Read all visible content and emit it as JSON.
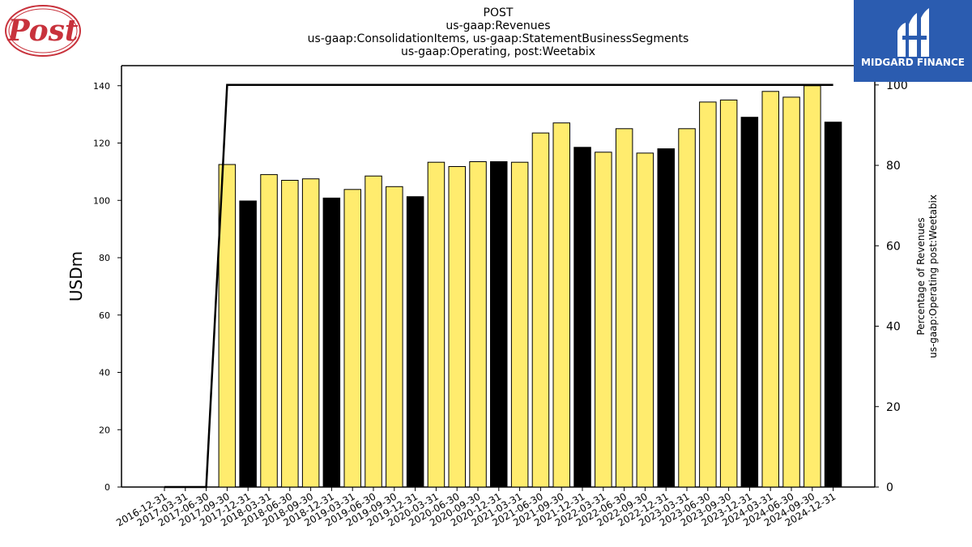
{
  "logos": {
    "company_logo_text": "Post",
    "brand_name": "MIDGARD FINANCE",
    "brand_color": "#2b5cb0",
    "company_color": "#c8323c"
  },
  "chart_data": {
    "type": "bar",
    "title_lines": [
      "POST",
      "us-gaap:Revenues",
      "us-gaap:ConsolidationItems, us-gaap:StatementBusinessSegments",
      "us-gaap:Operating, post:Weetabix"
    ],
    "ylabel": "USDm",
    "y2label_lines": [
      "Percentage of Revenues",
      "us-gaap:Operating post:Weetabix"
    ],
    "ylim": [
      0,
      147
    ],
    "yticks": [
      0,
      20,
      40,
      60,
      80,
      100,
      120,
      140
    ],
    "y2lim": [
      0,
      104.8
    ],
    "y2ticks": [
      0,
      20,
      40,
      60,
      80,
      100
    ],
    "categories": [
      "2016-12-31",
      "2017-03-31",
      "2017-06-30",
      "2017-09-30",
      "2017-12-31",
      "2018-03-31",
      "2018-06-30",
      "2018-09-30",
      "2018-12-31",
      "2019-03-31",
      "2019-06-30",
      "2019-09-30",
      "2019-12-31",
      "2020-03-31",
      "2020-06-30",
      "2020-09-30",
      "2020-12-31",
      "2021-03-31",
      "2021-06-30",
      "2021-09-30",
      "2021-12-31",
      "2022-03-31",
      "2022-06-30",
      "2022-09-30",
      "2022-12-31",
      "2023-03-31",
      "2023-06-30",
      "2023-09-30",
      "2023-12-31",
      "2024-03-31",
      "2024-06-30",
      "2024-09-30",
      "2024-12-31"
    ],
    "values": [
      0,
      0,
      0,
      112.5,
      99.8,
      109.0,
      107.0,
      107.5,
      100.8,
      103.8,
      108.5,
      104.8,
      101.3,
      113.3,
      111.8,
      113.5,
      113.5,
      113.3,
      123.5,
      127.0,
      118.5,
      116.8,
      125.0,
      116.5,
      118.0,
      125.0,
      134.3,
      135.0,
      129.0,
      138.0,
      136.0,
      140.0,
      127.3
    ],
    "bar_highlight": [
      false,
      false,
      false,
      false,
      true,
      false,
      false,
      false,
      true,
      false,
      false,
      false,
      true,
      false,
      false,
      false,
      true,
      false,
      false,
      false,
      true,
      false,
      false,
      false,
      true,
      false,
      false,
      false,
      true,
      false,
      false,
      false,
      true
    ],
    "percentage_series": {
      "name": "",
      "values": [
        0,
        0,
        0,
        100,
        100,
        100,
        100,
        100,
        100,
        100,
        100,
        100,
        100,
        100,
        100,
        100,
        100,
        100,
        100,
        100,
        100,
        100,
        100,
        100,
        100,
        100,
        100,
        100,
        100,
        100,
        100,
        100,
        100
      ]
    },
    "colors": {
      "bar_default": "#ffec6e",
      "bar_highlight": "#000000",
      "line": "#000000"
    },
    "grid": false,
    "legend": "none"
  }
}
